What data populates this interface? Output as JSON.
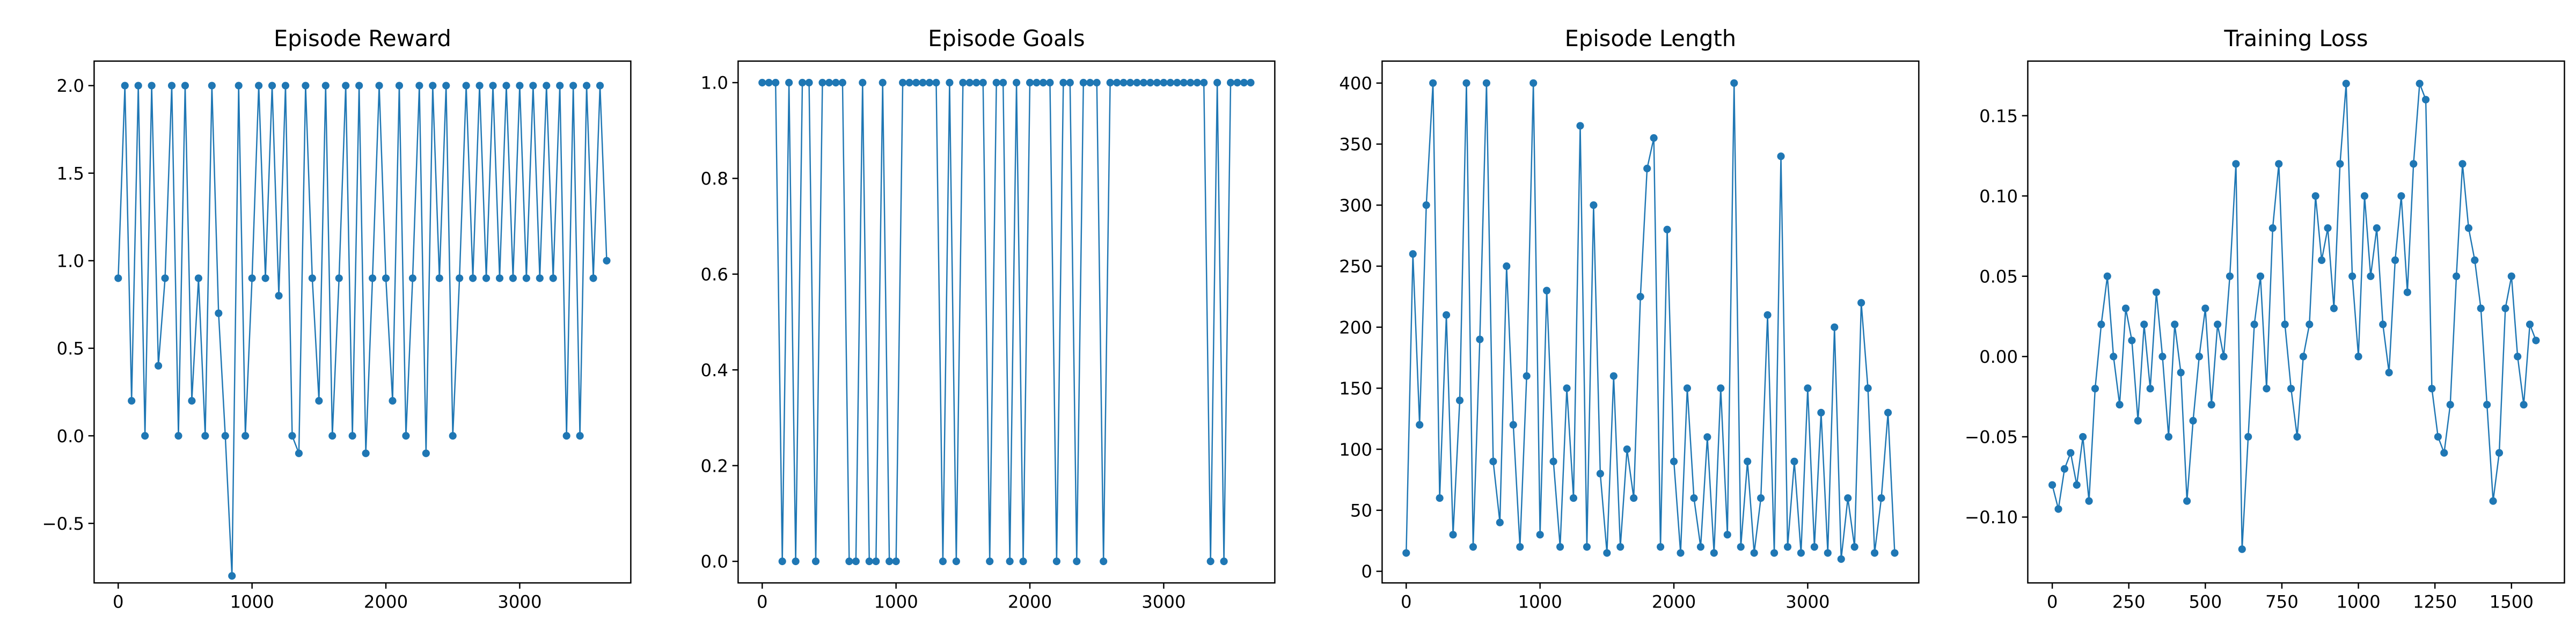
{
  "chart_data": [
    {
      "type": "line",
      "title": "Episode Reward",
      "color": "#1f77b4",
      "marker": true,
      "x": [
        0,
        50,
        100,
        150,
        200,
        250,
        300,
        350,
        400,
        450,
        500,
        550,
        600,
        650,
        700,
        750,
        800,
        850,
        900,
        950,
        1000,
        1050,
        1100,
        1150,
        1200,
        1250,
        1300,
        1350,
        1400,
        1450,
        1500,
        1550,
        1600,
        1650,
        1700,
        1750,
        1800,
        1850,
        1900,
        1950,
        2000,
        2050,
        2100,
        2150,
        2200,
        2250,
        2300,
        2350,
        2400,
        2450,
        2500,
        2550,
        2600,
        2650,
        2700,
        2750,
        2800,
        2850,
        2900,
        2950,
        3000,
        3050,
        3100,
        3150,
        3200,
        3250,
        3300,
        3350,
        3400,
        3450,
        3500,
        3550,
        3600,
        3650
      ],
      "values": [
        0.9,
        2.0,
        0.2,
        2.0,
        0.0,
        2.0,
        0.4,
        0.9,
        2.0,
        0.0,
        2.0,
        0.2,
        0.9,
        0.0,
        2.0,
        0.7,
        0.0,
        -0.8,
        2.0,
        0.0,
        0.9,
        2.0,
        0.9,
        2.0,
        0.8,
        2.0,
        0.0,
        -0.1,
        2.0,
        0.9,
        0.2,
        2.0,
        0.0,
        0.9,
        2.0,
        0.0,
        2.0,
        -0.1,
        0.9,
        2.0,
        0.9,
        0.2,
        2.0,
        0.0,
        0.9,
        2.0,
        -0.1,
        2.0,
        0.9,
        2.0,
        0.0,
        0.9,
        2.0,
        0.9,
        2.0,
        0.9,
        2.0,
        0.9,
        2.0,
        0.9,
        2.0,
        0.9,
        2.0,
        0.9,
        2.0,
        0.9,
        2.0,
        0.0,
        2.0,
        0.0,
        2.0,
        0.9,
        2.0,
        1.0
      ],
      "xlim": [
        -180,
        3830
      ],
      "ylim": [
        -0.84,
        2.14
      ],
      "xticks": [
        0,
        1000,
        2000,
        3000
      ],
      "yticks": [
        {
          "value": -0.5,
          "label": "−0.5"
        },
        {
          "value": 0,
          "label": "0.0"
        },
        {
          "value": 0.5,
          "label": "0.5"
        },
        {
          "value": 1,
          "label": "1.0"
        },
        {
          "value": 1.5,
          "label": "1.5"
        },
        {
          "value": 2,
          "label": "2.0"
        }
      ]
    },
    {
      "type": "line",
      "title": "Episode Goals",
      "color": "#1f77b4",
      "marker": true,
      "x": [
        0,
        50,
        100,
        150,
        200,
        250,
        300,
        350,
        400,
        450,
        500,
        550,
        600,
        650,
        700,
        750,
        800,
        850,
        900,
        950,
        1000,
        1050,
        1100,
        1150,
        1200,
        1250,
        1300,
        1350,
        1400,
        1450,
        1500,
        1550,
        1600,
        1650,
        1700,
        1750,
        1800,
        1850,
        1900,
        1950,
        2000,
        2050,
        2100,
        2150,
        2200,
        2250,
        2300,
        2350,
        2400,
        2450,
        2500,
        2550,
        2600,
        2650,
        2700,
        2750,
        2800,
        2850,
        2900,
        2950,
        3000,
        3050,
        3100,
        3150,
        3200,
        3250,
        3300,
        3350,
        3400,
        3450,
        3500,
        3550,
        3600,
        3650
      ],
      "values": [
        1,
        1,
        1,
        0,
        1,
        0,
        1,
        1,
        0,
        1,
        1,
        1,
        1,
        0,
        0,
        1,
        0,
        0,
        1,
        0,
        0,
        1,
        1,
        1,
        1,
        1,
        1,
        0,
        1,
        0,
        1,
        1,
        1,
        1,
        0,
        1,
        1,
        0,
        1,
        0,
        1,
        1,
        1,
        1,
        0,
        1,
        1,
        0,
        1,
        1,
        1,
        0,
        1,
        1,
        1,
        1,
        1,
        1,
        1,
        1,
        1,
        1,
        1,
        1,
        1,
        1,
        1,
        0,
        1,
        0,
        1,
        1,
        1,
        1
      ],
      "xlim": [
        -180,
        3830
      ],
      "ylim": [
        -0.045,
        1.045
      ],
      "xticks": [
        0,
        1000,
        2000,
        3000
      ],
      "yticks": [
        {
          "value": 0,
          "label": "0.0"
        },
        {
          "value": 0.2,
          "label": "0.2"
        },
        {
          "value": 0.4,
          "label": "0.4"
        },
        {
          "value": 0.6,
          "label": "0.6"
        },
        {
          "value": 0.8,
          "label": "0.8"
        },
        {
          "value": 1,
          "label": "1.0"
        }
      ]
    },
    {
      "type": "line",
      "title": "Episode Length",
      "color": "#1f77b4",
      "marker": true,
      "x": [
        0,
        50,
        100,
        150,
        200,
        250,
        300,
        350,
        400,
        450,
        500,
        550,
        600,
        650,
        700,
        750,
        800,
        850,
        900,
        950,
        1000,
        1050,
        1100,
        1150,
        1200,
        1250,
        1300,
        1350,
        1400,
        1450,
        1500,
        1550,
        1600,
        1650,
        1700,
        1750,
        1800,
        1850,
        1900,
        1950,
        2000,
        2050,
        2100,
        2150,
        2200,
        2250,
        2300,
        2350,
        2400,
        2450,
        2500,
        2550,
        2600,
        2650,
        2700,
        2750,
        2800,
        2850,
        2900,
        2950,
        3000,
        3050,
        3100,
        3150,
        3200,
        3250,
        3300,
        3350,
        3400,
        3450,
        3500,
        3550,
        3600,
        3650
      ],
      "values": [
        15,
        260,
        120,
        300,
        400,
        60,
        210,
        30,
        140,
        400,
        20,
        190,
        400,
        90,
        40,
        250,
        120,
        20,
        160,
        400,
        30,
        230,
        90,
        20,
        150,
        60,
        365,
        20,
        300,
        80,
        15,
        160,
        20,
        100,
        60,
        225,
        330,
        355,
        20,
        280,
        90,
        15,
        150,
        60,
        20,
        110,
        15,
        150,
        30,
        400,
        20,
        90,
        15,
        60,
        210,
        15,
        340,
        20,
        90,
        15,
        150,
        20,
        130,
        15,
        200,
        10,
        60,
        20,
        220,
        150,
        15,
        60,
        130,
        15
      ],
      "xlim": [
        -180,
        3830
      ],
      "ylim": [
        -9.5,
        418
      ],
      "xticks": [
        0,
        1000,
        2000,
        3000
      ],
      "yticks": [
        0,
        50,
        100,
        150,
        200,
        250,
        300,
        350,
        400
      ]
    },
    {
      "type": "line",
      "title": "Training Loss",
      "color": "#1f77b4",
      "marker": true,
      "x": [
        0,
        20,
        40,
        60,
        80,
        100,
        120,
        140,
        160,
        180,
        200,
        220,
        240,
        260,
        280,
        300,
        320,
        340,
        360,
        380,
        400,
        420,
        440,
        460,
        480,
        500,
        520,
        540,
        560,
        580,
        600,
        620,
        640,
        660,
        680,
        700,
        720,
        740,
        760,
        780,
        800,
        820,
        840,
        860,
        880,
        900,
        920,
        940,
        960,
        980,
        1000,
        1020,
        1040,
        1060,
        1080,
        1100,
        1120,
        1140,
        1160,
        1180,
        1200,
        1220,
        1240,
        1260,
        1280,
        1300,
        1320,
        1340,
        1360,
        1380,
        1400,
        1420,
        1440,
        1460,
        1480,
        1500,
        1520,
        1540,
        1560,
        1580
      ],
      "values": [
        -0.08,
        -0.095,
        -0.07,
        -0.06,
        -0.08,
        -0.05,
        -0.09,
        -0.02,
        0.02,
        0.05,
        0.0,
        -0.03,
        0.03,
        0.01,
        -0.04,
        0.02,
        -0.02,
        0.04,
        0.0,
        -0.05,
        0.02,
        -0.01,
        -0.09,
        -0.04,
        0.0,
        0.03,
        -0.03,
        0.02,
        0.0,
        0.05,
        0.12,
        -0.12,
        -0.05,
        0.02,
        0.05,
        -0.02,
        0.08,
        0.12,
        0.02,
        -0.02,
        -0.05,
        0.0,
        0.02,
        0.1,
        0.06,
        0.08,
        0.03,
        0.12,
        0.17,
        0.05,
        0.0,
        0.1,
        0.05,
        0.08,
        0.02,
        -0.01,
        0.06,
        0.1,
        0.04,
        0.12,
        0.17,
        0.16,
        -0.02,
        -0.05,
        -0.06,
        -0.03,
        0.05,
        0.12,
        0.08,
        0.06,
        0.03,
        -0.03,
        -0.09,
        -0.06,
        0.03,
        0.05,
        0.0,
        -0.03,
        0.02,
        0.01
      ],
      "xlim": [
        -80,
        1673
      ],
      "ylim": [
        -0.141,
        0.184
      ],
      "xticks": [
        0,
        250,
        500,
        750,
        1000,
        1250,
        1500
      ],
      "yticks": [
        {
          "value": -0.1,
          "label": "−0.10"
        },
        {
          "value": -0.05,
          "label": "−0.05"
        },
        {
          "value": 0,
          "label": "0.00"
        },
        {
          "value": 0.05,
          "label": "0.05"
        },
        {
          "value": 0.1,
          "label": "0.10"
        },
        {
          "value": 0.15,
          "label": "0.15"
        }
      ]
    }
  ]
}
